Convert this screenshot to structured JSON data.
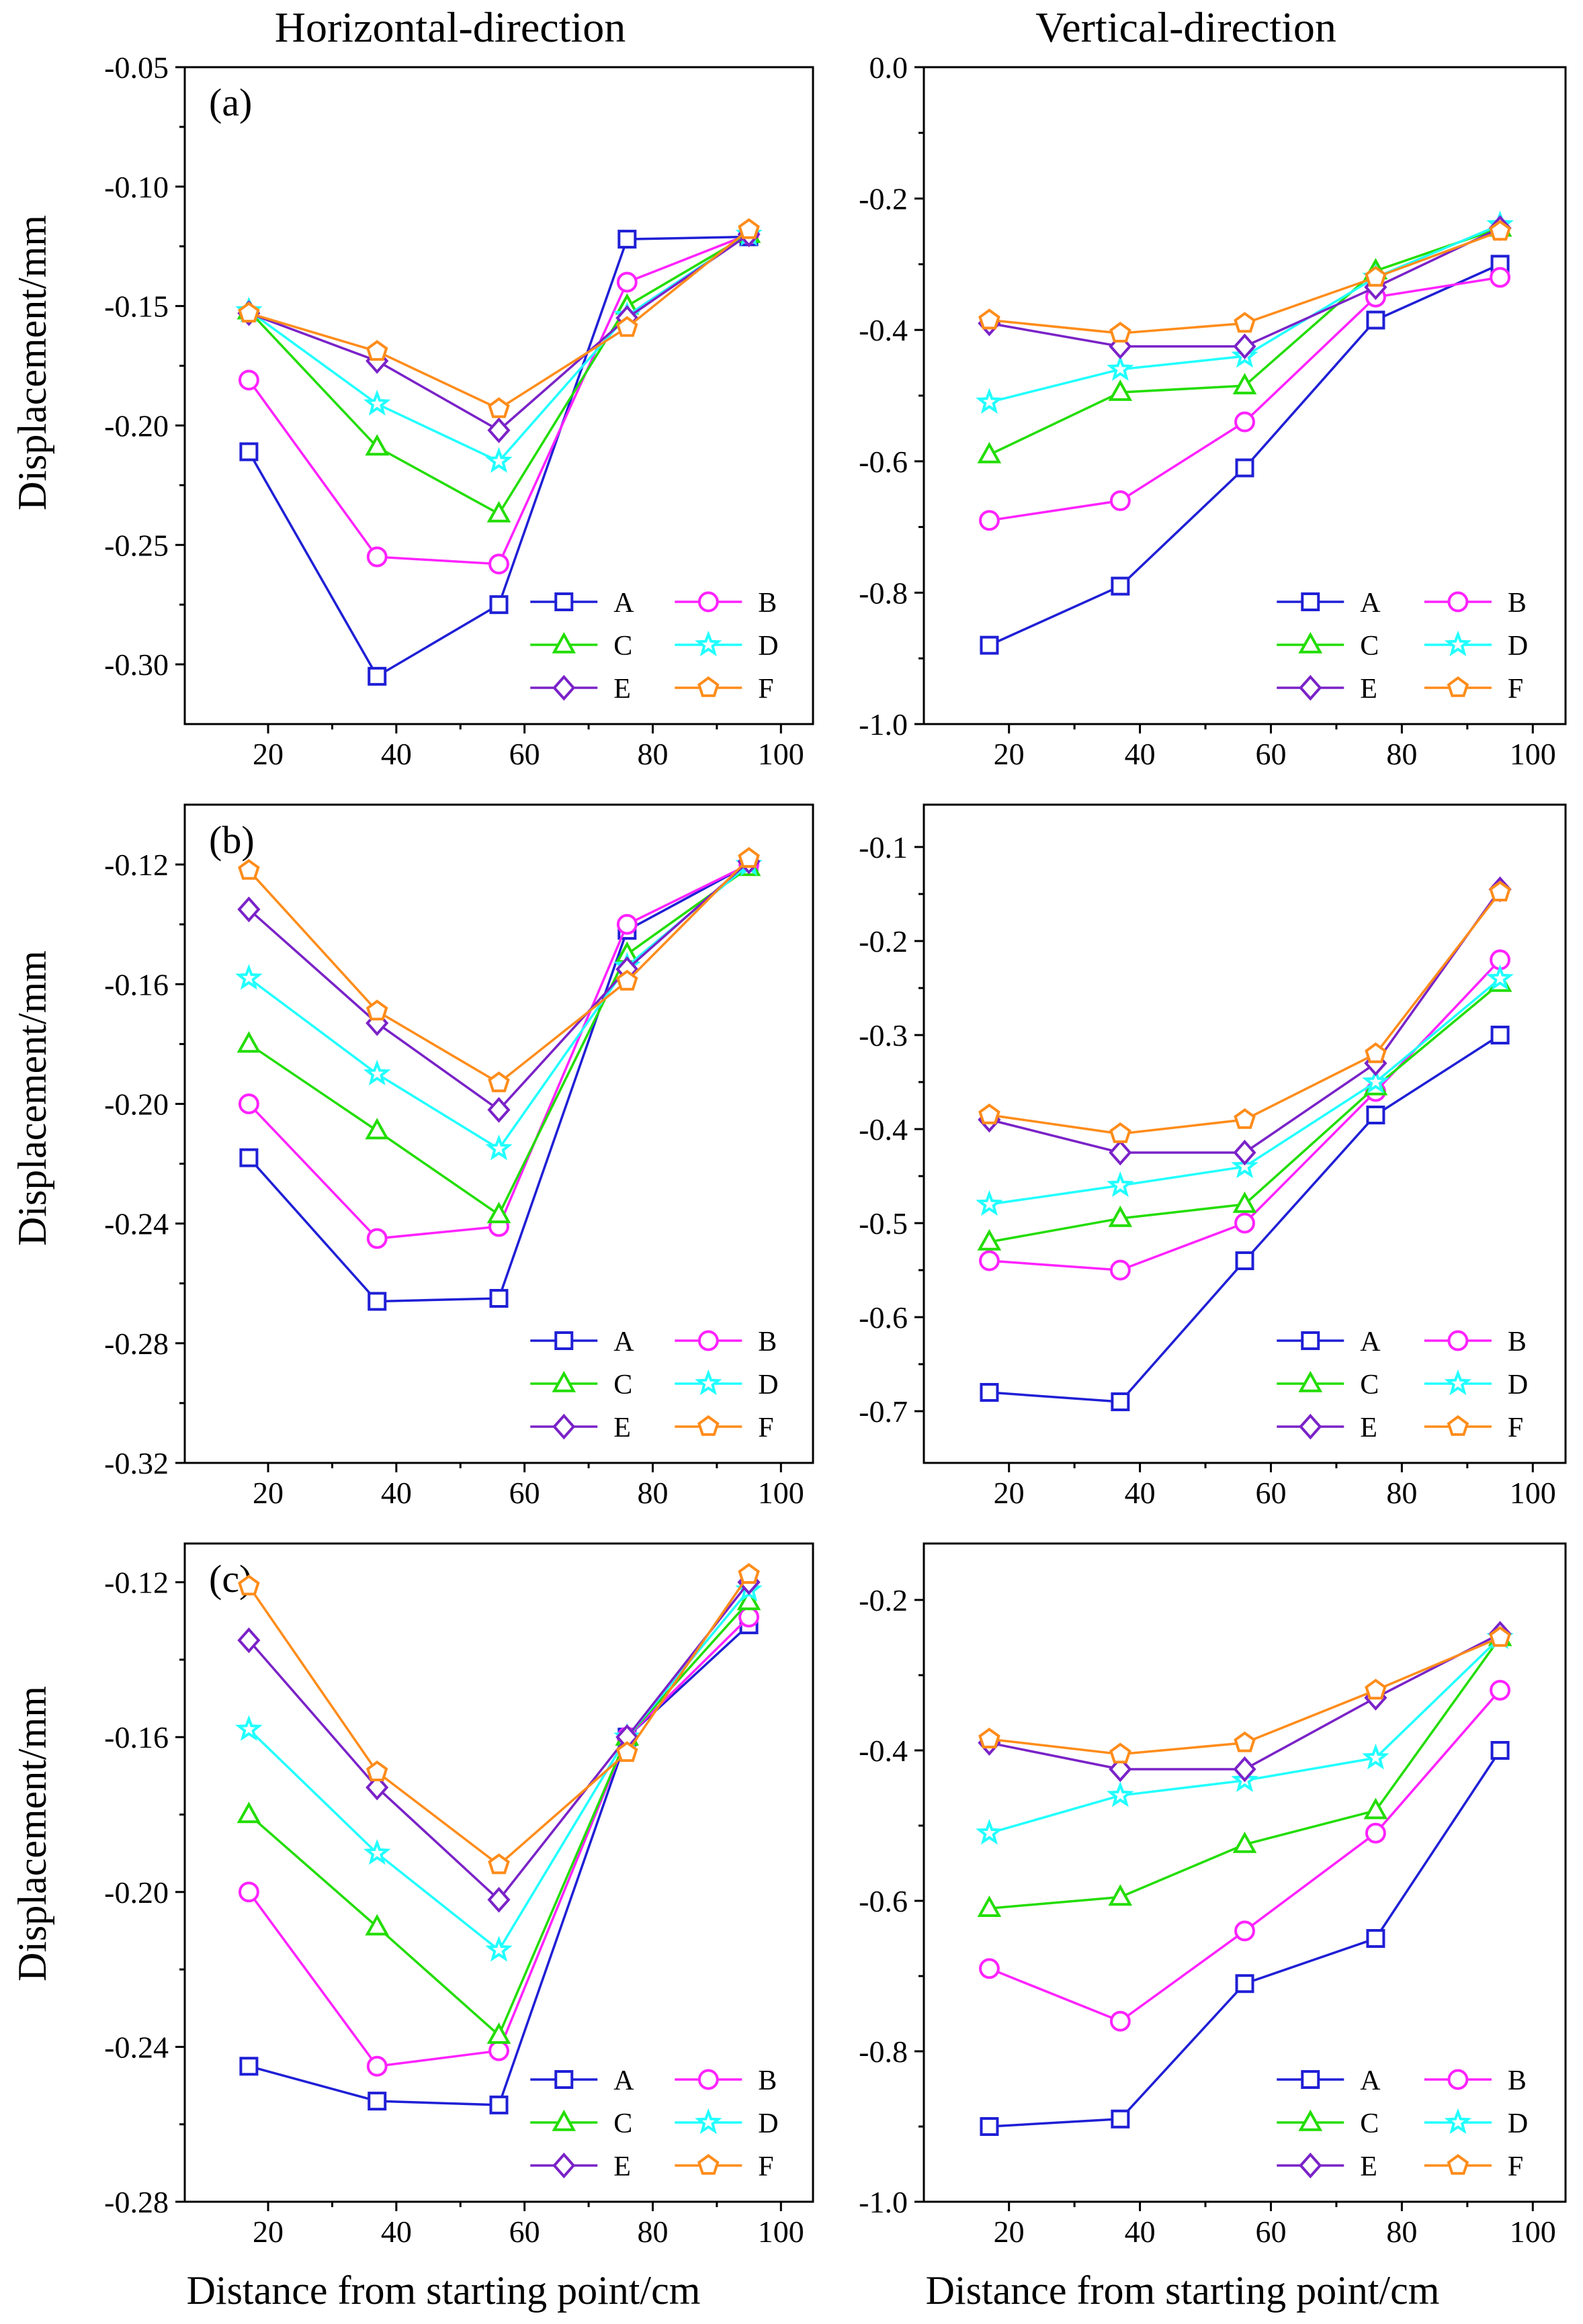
{
  "columns": [
    "Horizontal-direction",
    "Vertical-direction"
  ],
  "ylabel": "Displacement/mm",
  "xlabel": "Distance from starting point/cm",
  "series_names": [
    "A",
    "B",
    "C",
    "D",
    "E",
    "F"
  ],
  "series_colors": [
    "#1f1fd6",
    "#ff22ff",
    "#22dd00",
    "#22ffff",
    "#7a22c8",
    "#ff8c1a"
  ],
  "series_markers": [
    "square",
    "circle",
    "triangle",
    "star",
    "diamond",
    "pentagon"
  ],
  "chart_data": [
    {
      "type": "line",
      "panel_label": "(a)",
      "column": "Horizontal-direction",
      "x": [
        17,
        37,
        56,
        76,
        95
      ],
      "xlim": [
        7,
        105
      ],
      "xticks": [
        20,
        40,
        60,
        80,
        100
      ],
      "ylim": [
        -0.325,
        -0.05
      ],
      "yticks": [
        -0.3,
        -0.25,
        -0.2,
        -0.15,
        -0.1,
        -0.05
      ],
      "ytick_labels": [
        "-0.30",
        "-0.25",
        "-0.20",
        "-0.15",
        "-0.10",
        "-0.05"
      ],
      "legend": "bottom-right",
      "series": [
        {
          "name": "A",
          "values": [
            -0.211,
            -0.305,
            -0.275,
            -0.122,
            -0.121
          ]
        },
        {
          "name": "B",
          "values": [
            -0.181,
            -0.255,
            -0.258,
            -0.14,
            -0.12
          ]
        },
        {
          "name": "C",
          "values": [
            -0.152,
            -0.209,
            -0.237,
            -0.15,
            -0.12
          ]
        },
        {
          "name": "D",
          "values": [
            -0.152,
            -0.191,
            -0.215,
            -0.154,
            -0.12
          ]
        },
        {
          "name": "E",
          "values": [
            -0.153,
            -0.173,
            -0.202,
            -0.155,
            -0.12
          ]
        },
        {
          "name": "F",
          "values": [
            -0.153,
            -0.169,
            -0.193,
            -0.159,
            -0.118
          ]
        }
      ]
    },
    {
      "type": "line",
      "panel_label": "",
      "column": "Vertical-direction",
      "x": [
        17,
        37,
        56,
        76,
        95
      ],
      "xlim": [
        7,
        105
      ],
      "xticks": [
        20,
        40,
        60,
        80,
        100
      ],
      "ylim": [
        -1.0,
        0.0
      ],
      "yticks": [
        -1.0,
        -0.8,
        -0.6,
        -0.4,
        -0.2,
        0.0
      ],
      "ytick_labels": [
        "-1.0",
        "-0.8",
        "-0.6",
        "-0.4",
        "-0.2",
        "0.0"
      ],
      "legend": "bottom-right",
      "series": [
        {
          "name": "A",
          "values": [
            -0.88,
            -0.79,
            -0.61,
            -0.385,
            -0.3
          ]
        },
        {
          "name": "B",
          "values": [
            -0.69,
            -0.66,
            -0.54,
            -0.35,
            -0.32
          ]
        },
        {
          "name": "C",
          "values": [
            -0.59,
            -0.495,
            -0.485,
            -0.31,
            -0.245
          ]
        },
        {
          "name": "D",
          "values": [
            -0.51,
            -0.46,
            -0.44,
            -0.32,
            -0.24
          ]
        },
        {
          "name": "E",
          "values": [
            -0.39,
            -0.425,
            -0.425,
            -0.335,
            -0.245
          ]
        },
        {
          "name": "F",
          "values": [
            -0.385,
            -0.405,
            -0.39,
            -0.32,
            -0.25
          ]
        }
      ]
    },
    {
      "type": "line",
      "panel_label": "(b)",
      "column": "Horizontal-direction",
      "x": [
        17,
        37,
        56,
        76,
        95
      ],
      "xlim": [
        7,
        105
      ],
      "xticks": [
        20,
        40,
        60,
        80,
        100
      ],
      "ylim": [
        -0.32,
        -0.1
      ],
      "yticks": [
        -0.32,
        -0.28,
        -0.24,
        -0.2,
        -0.16,
        -0.12
      ],
      "ytick_labels": [
        "-0.32",
        "-0.28",
        "-0.24",
        "-0.20",
        "-0.16",
        "-0.12"
      ],
      "legend": "bottom-right",
      "series": [
        {
          "name": "A",
          "values": [
            -0.218,
            -0.266,
            -0.265,
            -0.142,
            -0.12
          ]
        },
        {
          "name": "B",
          "values": [
            -0.2,
            -0.245,
            -0.241,
            -0.14,
            -0.12
          ]
        },
        {
          "name": "C",
          "values": [
            -0.18,
            -0.209,
            -0.237,
            -0.15,
            -0.121
          ]
        },
        {
          "name": "D",
          "values": [
            -0.158,
            -0.19,
            -0.215,
            -0.154,
            -0.12
          ]
        },
        {
          "name": "E",
          "values": [
            -0.135,
            -0.173,
            -0.202,
            -0.155,
            -0.119
          ]
        },
        {
          "name": "F",
          "values": [
            -0.122,
            -0.169,
            -0.193,
            -0.159,
            -0.118
          ]
        }
      ]
    },
    {
      "type": "line",
      "panel_label": "",
      "column": "Vertical-direction",
      "x": [
        17,
        37,
        56,
        76,
        95
      ],
      "xlim": [
        7,
        105
      ],
      "xticks": [
        20,
        40,
        60,
        80,
        100
      ],
      "ylim": [
        -0.755,
        -0.055
      ],
      "yticks": [
        -0.7,
        -0.6,
        -0.5,
        -0.4,
        -0.3,
        -0.2,
        -0.1
      ],
      "ytick_labels": [
        "-0.7",
        "-0.6",
        "-0.5",
        "-0.4",
        "-0.3",
        "-0.2",
        "-0.1"
      ],
      "legend": "bottom-right",
      "series": [
        {
          "name": "A",
          "values": [
            -0.68,
            -0.69,
            -0.54,
            -0.385,
            -0.3
          ]
        },
        {
          "name": "B",
          "values": [
            -0.54,
            -0.55,
            -0.5,
            -0.36,
            -0.22
          ]
        },
        {
          "name": "C",
          "values": [
            -0.52,
            -0.495,
            -0.48,
            -0.355,
            -0.245
          ]
        },
        {
          "name": "D",
          "values": [
            -0.48,
            -0.46,
            -0.44,
            -0.35,
            -0.24
          ]
        },
        {
          "name": "E",
          "values": [
            -0.39,
            -0.425,
            -0.425,
            -0.33,
            -0.145
          ]
        },
        {
          "name": "F",
          "values": [
            -0.385,
            -0.405,
            -0.39,
            -0.32,
            -0.148
          ]
        }
      ]
    },
    {
      "type": "line",
      "panel_label": "(c)",
      "column": "Horizontal-direction",
      "x": [
        17,
        37,
        56,
        76,
        95
      ],
      "xlim": [
        7,
        105
      ],
      "xticks": [
        20,
        40,
        60,
        80,
        100
      ],
      "ylim": [
        -0.28,
        -0.11
      ],
      "yticks": [
        -0.28,
        -0.24,
        -0.2,
        -0.16,
        -0.12
      ],
      "ytick_labels": [
        "-0.28",
        "-0.24",
        "-0.20",
        "-0.16",
        "-0.12"
      ],
      "legend": "bottom-right",
      "series": [
        {
          "name": "A",
          "values": [
            -0.245,
            -0.254,
            -0.255,
            -0.16,
            -0.131
          ]
        },
        {
          "name": "B",
          "values": [
            -0.2,
            -0.245,
            -0.241,
            -0.16,
            -0.129
          ]
        },
        {
          "name": "C",
          "values": [
            -0.18,
            -0.209,
            -0.237,
            -0.16,
            -0.125
          ]
        },
        {
          "name": "D",
          "values": [
            -0.158,
            -0.19,
            -0.215,
            -0.16,
            -0.122
          ]
        },
        {
          "name": "E",
          "values": [
            -0.135,
            -0.173,
            -0.202,
            -0.16,
            -0.12
          ]
        },
        {
          "name": "F",
          "values": [
            -0.121,
            -0.169,
            -0.193,
            -0.164,
            -0.118
          ]
        }
      ]
    },
    {
      "type": "line",
      "panel_label": "",
      "column": "Vertical-direction",
      "x": [
        17,
        37,
        56,
        76,
        95
      ],
      "xlim": [
        7,
        105
      ],
      "xticks": [
        20,
        40,
        60,
        80,
        100
      ],
      "ylim": [
        -1.0,
        -0.125
      ],
      "yticks": [
        -1.0,
        -0.8,
        -0.6,
        -0.4,
        -0.2
      ],
      "ytick_labels": [
        "-1.0",
        "-0.8",
        "-0.6",
        "-0.4",
        "-0.2"
      ],
      "legend": "bottom-right",
      "series": [
        {
          "name": "A",
          "values": [
            -0.9,
            -0.89,
            -0.71,
            -0.65,
            -0.4
          ]
        },
        {
          "name": "B",
          "values": [
            -0.69,
            -0.76,
            -0.64,
            -0.51,
            -0.32
          ]
        },
        {
          "name": "C",
          "values": [
            -0.61,
            -0.595,
            -0.525,
            -0.48,
            -0.25
          ]
        },
        {
          "name": "D",
          "values": [
            -0.51,
            -0.46,
            -0.44,
            -0.41,
            -0.25
          ]
        },
        {
          "name": "E",
          "values": [
            -0.39,
            -0.425,
            -0.425,
            -0.33,
            -0.245
          ]
        },
        {
          "name": "F",
          "values": [
            -0.385,
            -0.405,
            -0.39,
            -0.32,
            -0.25
          ]
        }
      ]
    }
  ]
}
